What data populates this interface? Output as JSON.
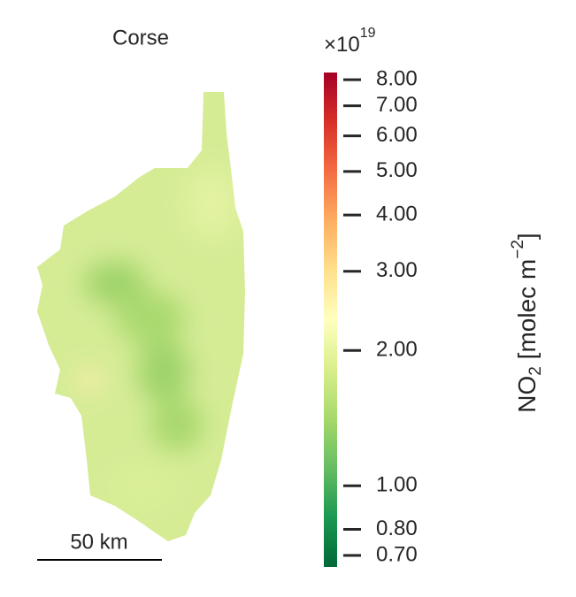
{
  "map": {
    "title": "Corse",
    "scale_bar": "50 km"
  },
  "colorbar": {
    "scale": "log",
    "lim": [
      0.66,
      8.3
    ],
    "exponent_base": "×10",
    "exponent_power": "19",
    "label_parts": [
      "NO",
      "2",
      " [molec m",
      "−2",
      "]"
    ],
    "colors": [
      "#006837",
      "#1a9850",
      "#66bd63",
      "#a6d96a",
      "#d9ef8b",
      "#ffffbf",
      "#fee08b",
      "#fdae61",
      "#f46d43",
      "#d73027",
      "#a50026"
    ],
    "ticks": [
      {
        "value": 0.7,
        "label": "0.70"
      },
      {
        "value": 0.8,
        "label": "0.80"
      },
      {
        "value": 1,
        "label": "1.00"
      },
      {
        "value": 2,
        "label": "2.00"
      },
      {
        "value": 3,
        "label": "3.00"
      },
      {
        "value": 4,
        "label": "4.00"
      },
      {
        "value": 5,
        "label": "5.00"
      },
      {
        "value": 6,
        "label": "6.00"
      },
      {
        "value": 7,
        "label": "7.00"
      },
      {
        "value": 8,
        "label": "8.00"
      }
    ]
  }
}
